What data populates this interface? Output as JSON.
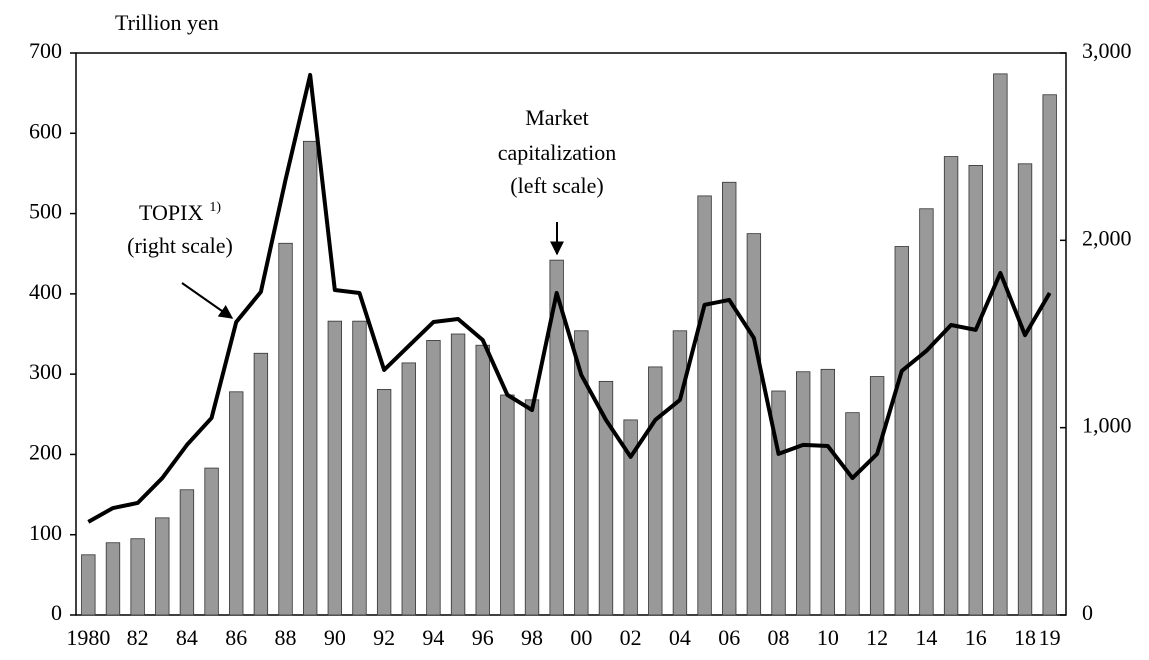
{
  "chart_data": {
    "type": "bar_line",
    "y_label": "Trillion yen",
    "categories": [
      "1980",
      null,
      "82",
      null,
      "84",
      null,
      "86",
      null,
      "88",
      null,
      "90",
      null,
      "92",
      null,
      "94",
      null,
      "96",
      null,
      "98",
      null,
      "00",
      null,
      "02",
      null,
      "04",
      null,
      "06",
      null,
      "08",
      null,
      "10",
      null,
      "12",
      null,
      "14",
      null,
      "16",
      null,
      "18",
      "19"
    ],
    "series": [
      {
        "type": "bar",
        "color": "#999999",
        "axis": "y",
        "values": [
          75,
          90,
          95,
          121,
          156,
          183,
          278,
          326,
          463,
          590,
          366,
          366,
          281,
          314,
          342,
          350,
          336,
          274,
          268,
          442,
          354,
          291,
          243,
          309,
          354,
          522,
          539,
          475,
          279,
          303,
          306,
          252,
          297,
          459,
          506,
          571,
          560,
          674,
          562,
          648
        ]
      },
      {
        "type": "line",
        "color": "#000000",
        "axis": "y2",
        "values": [
          497,
          571,
          598,
          731,
          908,
          1052,
          1564,
          1725,
          2323,
          2883,
          1735,
          1719,
          1308,
          1436,
          1564,
          1580,
          1468,
          1175,
          1094,
          1719,
          1281,
          1041,
          844,
          1041,
          1148,
          1656,
          1682,
          1479,
          860,
          908,
          902,
          731,
          860,
          1303,
          1410,
          1548,
          1522,
          1826,
          1494,
          1719
        ]
      }
    ],
    "ylim": [
      0,
      700
    ],
    "yticks": [
      0,
      100,
      200,
      300,
      400,
      500,
      600,
      700
    ],
    "y2lim": [
      0,
      3000
    ],
    "y2ticks": [
      0,
      {
        "value": 1000,
        "label": "1,000"
      },
      {
        "value": 2000,
        "label": "2,000"
      },
      {
        "value": 3000,
        "label": "3,000"
      }
    ],
    "annotations": [
      {
        "lines": [
          "TOPIX",
          "(right scale)"
        ],
        "superscript": "1)"
      },
      {
        "lines": [
          "Market",
          "capitalization",
          "(left scale)"
        ]
      }
    ]
  }
}
